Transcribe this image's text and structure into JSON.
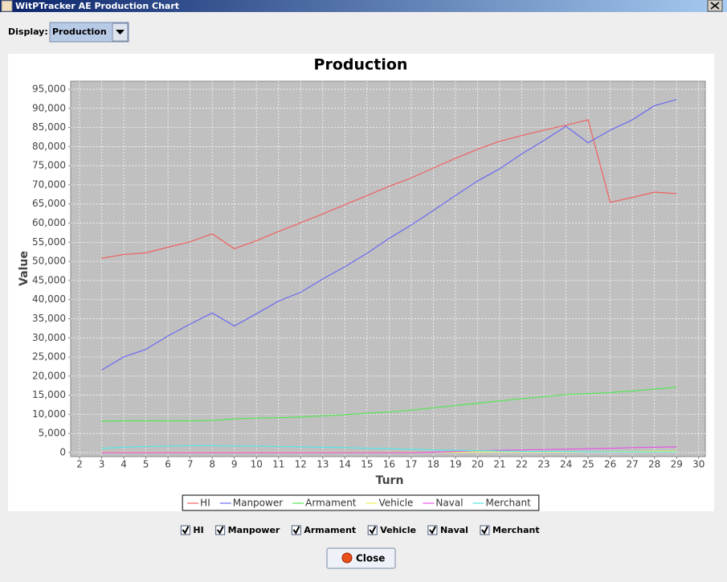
{
  "window": {
    "title": "WitPTracker AE Production Chart"
  },
  "toolbar": {
    "label": "Display:",
    "selected": "Production"
  },
  "chart_data": {
    "type": "line",
    "title": "Production",
    "x_label": "Turn",
    "y_label": "Value",
    "x": [
      3,
      4,
      5,
      6,
      7,
      8,
      9,
      10,
      11,
      12,
      13,
      14,
      15,
      16,
      17,
      18,
      19,
      20,
      21,
      22,
      23,
      24,
      25,
      26,
      27,
      28,
      29
    ],
    "series": [
      {
        "name": "HI",
        "color": "#f06060",
        "values": [
          50800,
          51800,
          52200,
          53700,
          55100,
          57200,
          53300,
          55400,
          57800,
          60100,
          62400,
          64800,
          67200,
          69600,
          71800,
          74400,
          76900,
          79300,
          81400,
          82900,
          84300,
          85600,
          87000,
          65400,
          66700,
          68100,
          67700
        ]
      },
      {
        "name": "Manpower",
        "color": "#6a6af0",
        "values": [
          21600,
          25000,
          27000,
          30500,
          33600,
          36500,
          33100,
          36300,
          39600,
          41900,
          45400,
          48600,
          52100,
          56000,
          59500,
          63300,
          67200,
          71000,
          74200,
          78100,
          81600,
          85300,
          81000,
          84300,
          87000,
          90700,
          92300
        ]
      },
      {
        "name": "Armament",
        "color": "#55e655",
        "values": [
          8200,
          8300,
          8300,
          8300,
          8300,
          8400,
          8800,
          9000,
          9100,
          9300,
          9600,
          9900,
          10300,
          10600,
          11100,
          11700,
          12300,
          12900,
          13500,
          14100,
          14600,
          15200,
          15400,
          15700,
          16100,
          16600,
          17100
        ]
      },
      {
        "name": "Vehicle",
        "color": "#eeee55",
        "values": [
          100,
          100,
          100,
          100,
          100,
          100,
          100,
          100,
          100,
          100,
          100,
          100,
          100,
          100,
          100,
          100,
          100,
          200,
          200,
          200,
          200,
          200,
          200,
          300,
          300,
          400,
          400
        ]
      },
      {
        "name": "Naval",
        "color": "#e655e6",
        "values": [
          0,
          0,
          0,
          0,
          0,
          0,
          0,
          0,
          0,
          0,
          0,
          0,
          0,
          0,
          0,
          100,
          300,
          500,
          600,
          700,
          800,
          900,
          1000,
          1100,
          1300,
          1400,
          1500
        ]
      },
      {
        "name": "Merchant",
        "color": "#55e6e6",
        "values": [
          1100,
          1400,
          1600,
          1700,
          1800,
          1800,
          1700,
          1700,
          1600,
          1500,
          1400,
          1300,
          1100,
          1000,
          900,
          700,
          600,
          500,
          400,
          300,
          300,
          300,
          200,
          200,
          200,
          200,
          200
        ]
      }
    ],
    "xlim": [
      1.6,
      30.3
    ],
    "xticks": [
      2,
      3,
      4,
      5,
      6,
      7,
      8,
      9,
      10,
      11,
      12,
      13,
      14,
      15,
      16,
      17,
      18,
      19,
      20,
      21,
      22,
      23,
      24,
      25,
      26,
      27,
      28,
      29,
      30
    ],
    "ylim": [
      -1050,
      97100
    ],
    "yticks": [
      0,
      {
        "value": 5000,
        "label": "5,000"
      },
      {
        "value": 10000,
        "label": "10,000"
      },
      {
        "value": 15000,
        "label": "15,000"
      },
      {
        "value": 20000,
        "label": "20,000"
      },
      {
        "value": 25000,
        "label": "25,000"
      },
      {
        "value": 30000,
        "label": "30,000"
      },
      {
        "value": 35000,
        "label": "35,000"
      },
      {
        "value": 40000,
        "label": "40,000"
      },
      {
        "value": 45000,
        "label": "45,000"
      },
      {
        "value": 50000,
        "label": "50,000"
      },
      {
        "value": 55000,
        "label": "55,000"
      },
      {
        "value": 60000,
        "label": "60,000"
      },
      {
        "value": 65000,
        "label": "65,000"
      },
      {
        "value": 70000,
        "label": "70,000"
      },
      {
        "value": 75000,
        "label": "75,000"
      },
      {
        "value": 80000,
        "label": "80,000"
      },
      {
        "value": 85000,
        "label": "85,000"
      },
      {
        "value": 90000,
        "label": "90,000"
      },
      {
        "value": 95000,
        "label": "95,000"
      }
    ],
    "grid": true,
    "legend": "bottom"
  },
  "close_button": "Close"
}
